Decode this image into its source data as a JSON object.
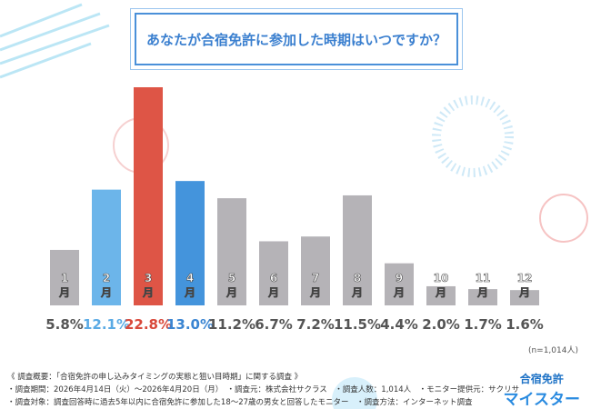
{
  "chart_data": {
    "type": "bar",
    "title": "あなたが合宿免許に参加した時期はいつですか？",
    "categories": [
      "1月",
      "2月",
      "3月",
      "4月",
      "5月",
      "6月",
      "7月",
      "8月",
      "9月",
      "10月",
      "11月",
      "12月"
    ],
    "values": [
      5.8,
      12.1,
      22.8,
      13.0,
      11.2,
      6.7,
      7.2,
      11.5,
      4.4,
      2.0,
      1.7,
      1.6
    ],
    "labels": [
      "5.8%",
      "12.1%",
      "22.8%",
      "13.0%",
      "11.2%",
      "6.7%",
      "7.2%",
      "11.5%",
      "4.4%",
      "2.0%",
      "1.7%",
      "1.6%"
    ],
    "colors": [
      "#b5b3b7",
      "#6cb5ea",
      "#de5546",
      "#4494dc",
      "#b5b3b7",
      "#b5b3b7",
      "#b5b3b7",
      "#b5b3b7",
      "#b5b3b7",
      "#b5b3b7",
      "#b5b3b7",
      "#b5b3b7"
    ],
    "label_colors": [
      "#555",
      "#5aaae4",
      "#d9493b",
      "#3a85d2",
      "#555",
      "#555",
      "#555",
      "#555",
      "#555",
      "#555",
      "#555",
      "#555"
    ],
    "ylim": [
      0,
      23
    ],
    "grid": false,
    "note": "(n=1,014人)"
  },
  "footer": {
    "line1": "《 調査概要：「合宿免許の申し込みタイミングの実態と狙い目時期」に関する調査 》",
    "line2": "・調査期間：2026年4月14日（火）～2026年4月20日（月）　・調査元：株式会社サクラス　・調査人数：1,014人　・モニター提供元：サクリサ",
    "line3": "・調査対象：調査回答時に過去5年以内に合宿免許に参加した18～27歳の男女と回答したモニター　・調査方法：インターネット調査"
  },
  "logo": {
    "top": "合宿免許",
    "bottom": "マイスター"
  }
}
